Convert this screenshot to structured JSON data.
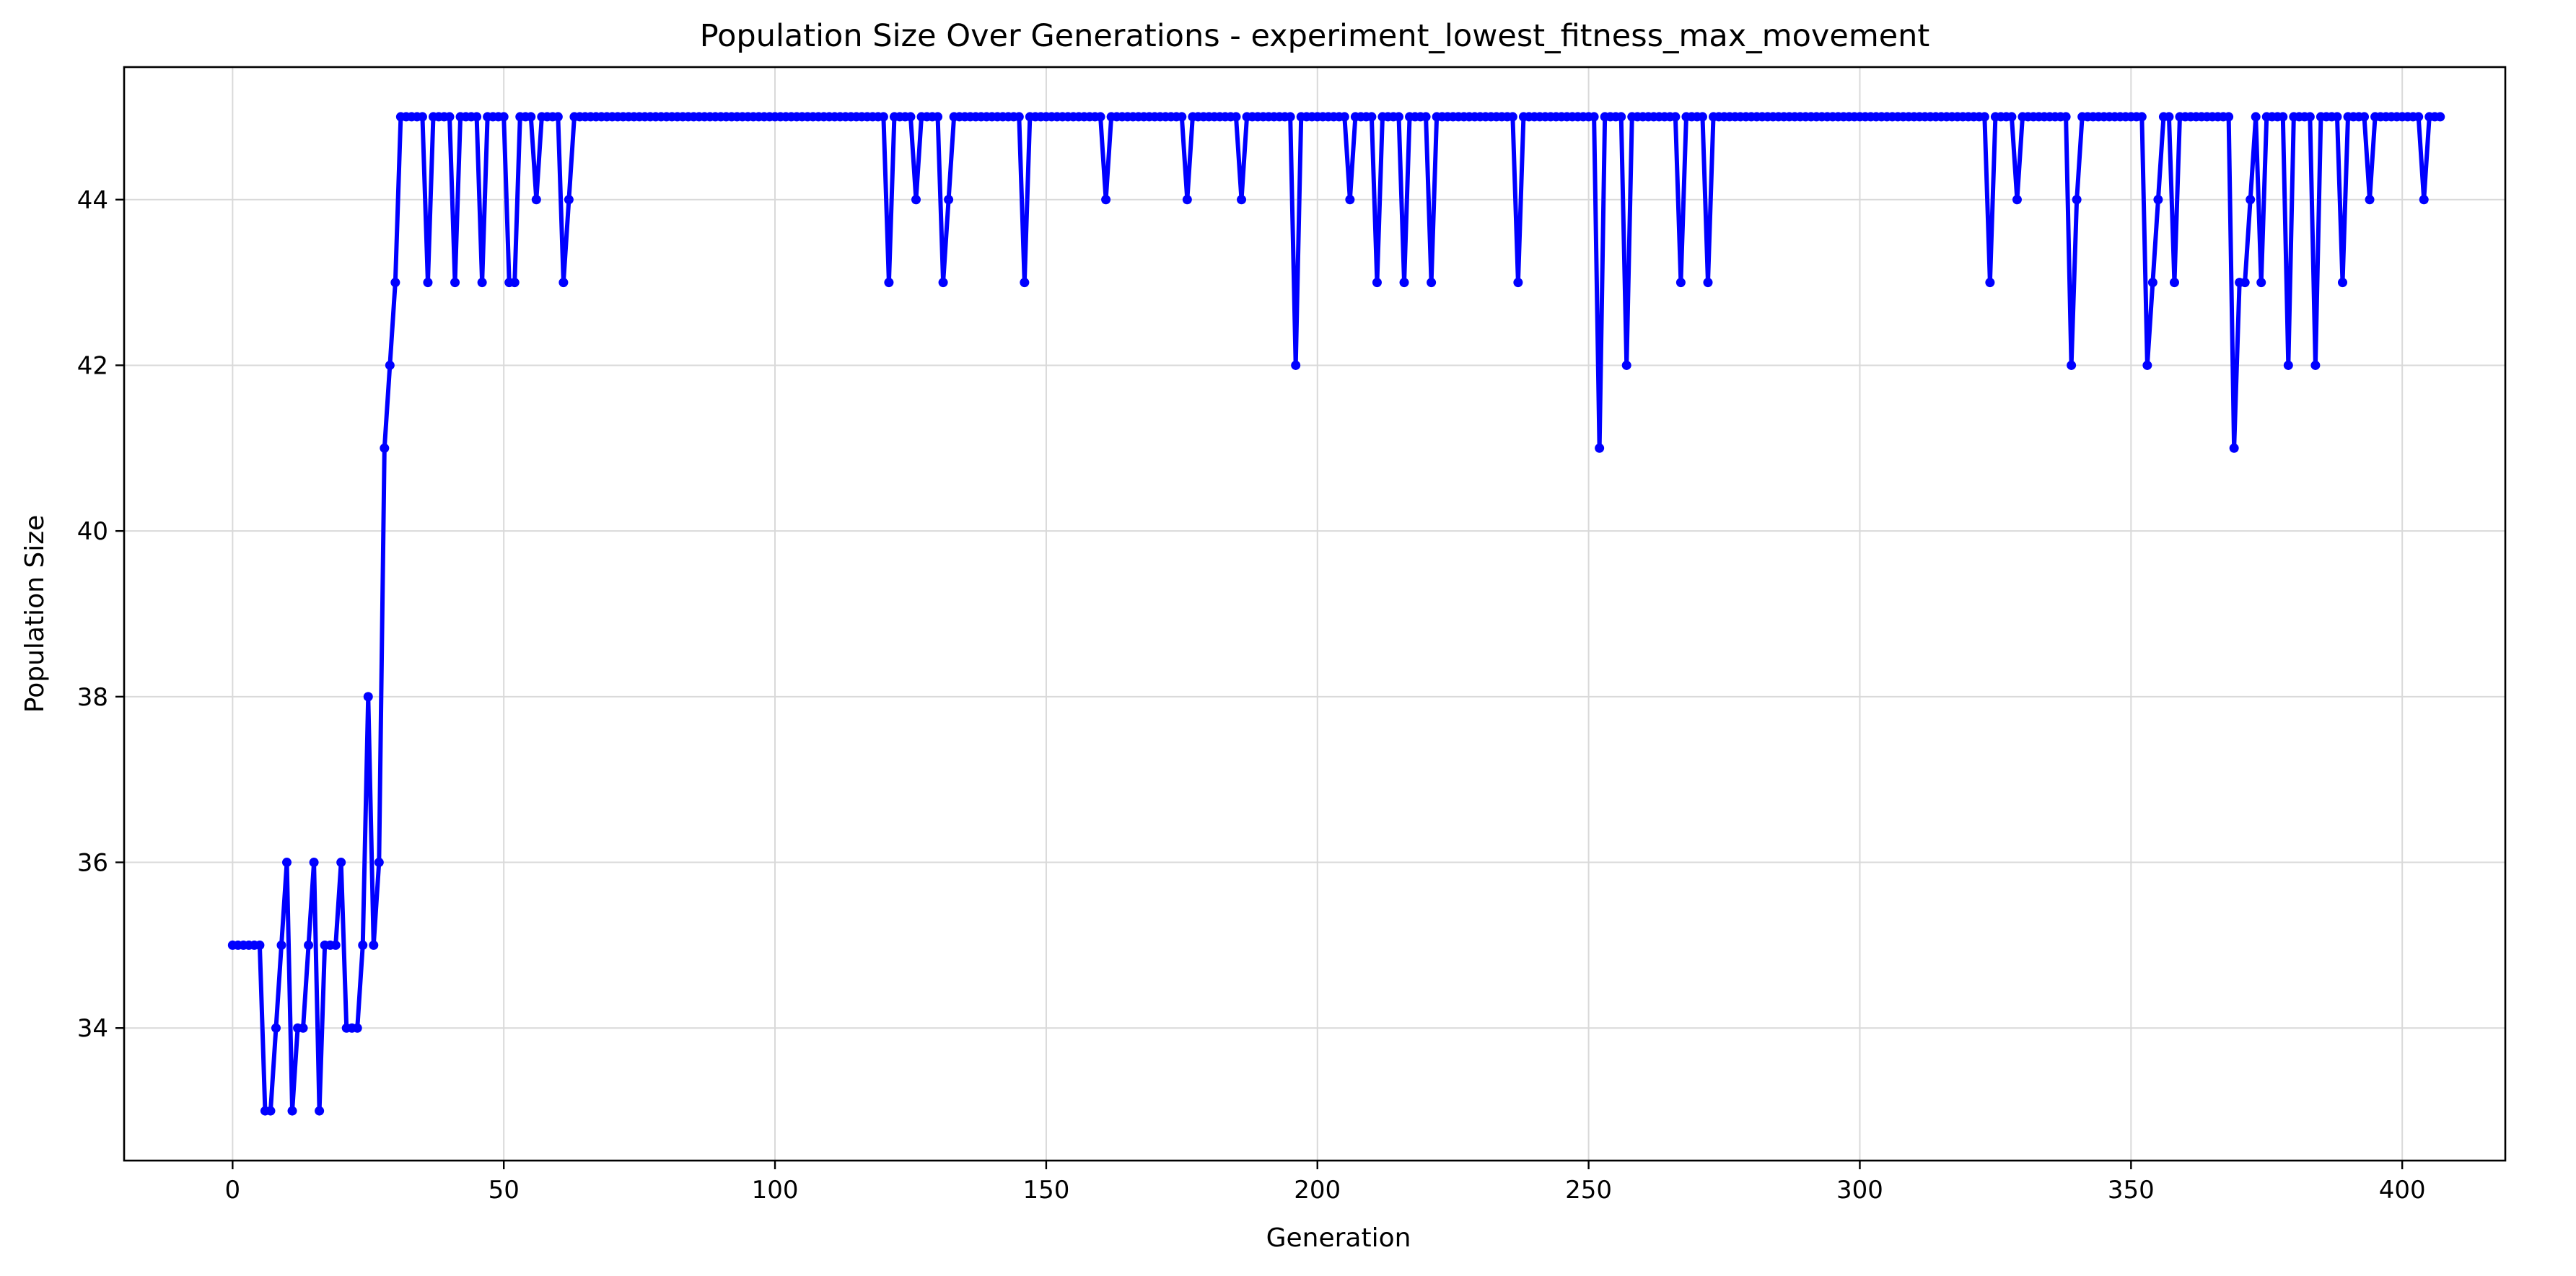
{
  "chart_data": {
    "type": "line",
    "title": "Population Size Over Generations - experiment_lowest_fitness_max_movement",
    "xlabel": "Generation",
    "ylabel": "Population Size",
    "xlim": [
      -20,
      419
    ],
    "ylim": [
      32.4,
      45.6
    ],
    "xticks": [
      0,
      50,
      100,
      150,
      200,
      250,
      300,
      350,
      400
    ],
    "yticks": [
      34,
      36,
      38,
      40,
      42,
      44
    ],
    "grid": true,
    "line_color": "#0000ff",
    "series": [
      {
        "values": [
          35,
          35,
          35,
          35,
          35,
          35,
          33,
          33,
          34,
          35,
          36,
          33,
          34,
          34,
          35,
          36,
          33,
          35,
          35,
          35,
          36,
          34,
          34,
          34,
          35,
          38,
          35,
          36,
          41,
          42,
          43,
          45,
          45,
          45,
          45,
          45,
          43,
          45,
          45,
          45,
          45,
          43,
          45,
          45,
          45,
          45,
          43,
          45,
          45,
          45,
          45,
          43,
          43,
          45,
          45,
          45,
          44,
          45,
          45,
          45,
          45,
          43,
          44,
          45,
          45,
          45,
          45,
          45,
          45,
          45,
          45,
          45,
          45,
          45,
          45,
          45,
          45,
          45,
          45,
          45,
          45,
          45,
          45,
          45,
          45,
          45,
          45,
          45,
          45,
          45,
          45,
          45,
          45,
          45,
          45,
          45,
          45,
          45,
          45,
          45,
          45,
          45,
          45,
          45,
          45,
          45,
          45,
          45,
          45,
          45,
          45,
          45,
          45,
          45,
          45,
          45,
          45,
          45,
          45,
          45,
          45,
          43,
          45,
          45,
          45,
          45,
          44,
          45,
          45,
          45,
          45,
          43,
          44,
          45,
          45,
          45,
          45,
          45,
          45,
          45,
          45,
          45,
          45,
          45,
          45,
          45,
          43,
          45,
          45,
          45,
          45,
          45,
          45,
          45,
          45,
          45,
          45,
          45,
          45,
          45,
          45,
          44,
          45,
          45,
          45,
          45,
          45,
          45,
          45,
          45,
          45,
          45,
          45,
          45,
          45,
          45,
          44,
          45,
          45,
          45,
          45,
          45,
          45,
          45,
          45,
          45,
          44,
          45,
          45,
          45,
          45,
          45,
          45,
          45,
          45,
          45,
          42,
          45,
          45,
          45,
          45,
          45,
          45,
          45,
          45,
          45,
          44,
          45,
          45,
          45,
          45,
          43,
          45,
          45,
          45,
          45,
          43,
          45,
          45,
          45,
          45,
          43,
          45,
          45,
          45,
          45,
          45,
          45,
          45,
          45,
          45,
          45,
          45,
          45,
          45,
          45,
          45,
          43,
          45,
          45,
          45,
          45,
          45,
          45,
          45,
          45,
          45,
          45,
          45,
          45,
          45,
          45,
          41,
          45,
          45,
          45,
          45,
          42,
          45,
          45,
          45,
          45,
          45,
          45,
          45,
          45,
          45,
          43,
          45,
          45,
          45,
          45,
          43,
          45,
          45,
          45,
          45,
          45,
          45,
          45,
          45,
          45,
          45,
          45,
          45,
          45,
          45,
          45,
          45,
          45,
          45,
          45,
          45,
          45,
          45,
          45,
          45,
          45,
          45,
          45,
          45,
          45,
          45,
          45,
          45,
          45,
          45,
          45,
          45,
          45,
          45,
          45,
          45,
          45,
          45,
          45,
          45,
          45,
          45,
          45,
          45,
          45,
          45,
          45,
          43,
          45,
          45,
          45,
          45,
          44,
          45,
          45,
          45,
          45,
          45,
          45,
          45,
          45,
          45,
          42,
          44,
          45,
          45,
          45,
          45,
          45,
          45,
          45,
          45,
          45,
          45,
          45,
          45,
          42,
          43,
          44,
          45,
          45,
          43,
          45,
          45,
          45,
          45,
          45,
          45,
          45,
          45,
          45,
          45,
          41,
          43,
          43,
          44,
          45,
          43,
          45,
          45,
          45,
          45,
          42,
          45,
          45,
          45,
          45,
          42,
          45,
          45,
          45,
          45,
          43,
          45,
          45,
          45,
          45,
          44,
          45,
          45,
          45,
          45,
          45,
          45,
          45,
          45,
          45,
          44,
          45,
          45,
          45
        ]
      }
    ]
  }
}
